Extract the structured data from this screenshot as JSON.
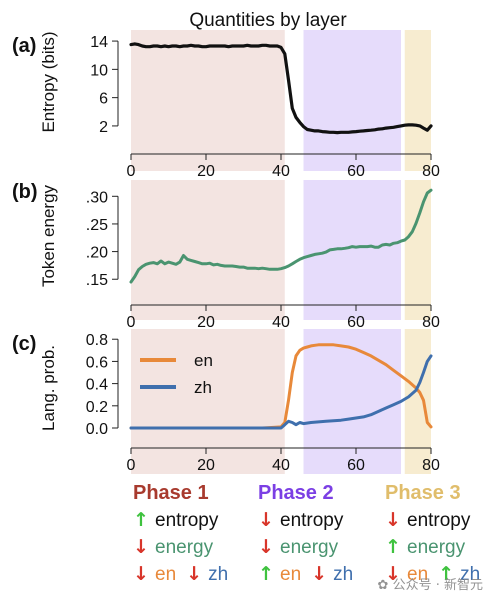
{
  "figure": {
    "title": "Quantities by layer"
  },
  "phases": [
    {
      "label": "Phase 1",
      "color": "#a83a2e",
      "bg": "#f3e4e1",
      "x_start": 0,
      "x_end": 41
    },
    {
      "label": "Phase 2",
      "color": "#7b3fe4",
      "bg": "#e6dcfb",
      "x_start": 46,
      "x_end": 72
    },
    {
      "label": "Phase 3",
      "color": "#e0bd6b",
      "bg": "#f7ecd0",
      "x_start": 73,
      "x_end": 80
    }
  ],
  "chart_data": [
    {
      "panel": "(a)",
      "type": "line",
      "ylabel": "Entropy (bits)",
      "xlim": [
        0,
        80
      ],
      "ylim": [
        1,
        15
      ],
      "yticks": [
        2,
        6,
        10,
        14
      ],
      "yticklabels": [
        "2",
        "6",
        "10",
        "14"
      ],
      "xticks": [
        0,
        20,
        40,
        60,
        80
      ],
      "xticklabels": [
        "0",
        "20",
        "40",
        "60",
        "80"
      ],
      "series": [
        {
          "color": "#111111",
          "x": [
            0,
            1,
            2,
            3,
            4,
            5,
            6,
            7,
            8,
            9,
            10,
            11,
            12,
            13,
            14,
            15,
            16,
            17,
            18,
            19,
            20,
            21,
            22,
            23,
            24,
            25,
            26,
            27,
            28,
            29,
            30,
            31,
            32,
            33,
            34,
            35,
            36,
            37,
            38,
            39,
            40,
            41,
            42,
            43,
            44,
            45,
            46,
            47,
            48,
            49,
            50,
            51,
            52,
            53,
            54,
            55,
            56,
            57,
            58,
            59,
            60,
            61,
            62,
            63,
            64,
            65,
            66,
            67,
            68,
            69,
            70,
            71,
            72,
            73,
            74,
            75,
            76,
            77,
            78,
            79,
            80
          ],
          "values": [
            13.5,
            13.6,
            13.5,
            13.3,
            13.2,
            13.2,
            13.3,
            13.3,
            13.2,
            13.3,
            13.2,
            13.3,
            13.3,
            13.2,
            13.3,
            13.3,
            13.4,
            13.3,
            13.3,
            13.2,
            13.2,
            13.3,
            13.3,
            13.3,
            13.3,
            13.3,
            13.2,
            13.3,
            13.3,
            13.3,
            13.3,
            13.4,
            13.3,
            13.3,
            13.3,
            13.4,
            13.4,
            13.3,
            13.3,
            13.3,
            13.1,
            12.2,
            8.5,
            4.5,
            3.2,
            2.5,
            1.9,
            1.5,
            1.4,
            1.3,
            1.3,
            1.2,
            1.15,
            1.1,
            1.1,
            1.05,
            1.1,
            1.1,
            1.1,
            1.15,
            1.2,
            1.25,
            1.3,
            1.35,
            1.4,
            1.45,
            1.55,
            1.6,
            1.7,
            1.75,
            1.8,
            1.9,
            2.0,
            2.1,
            2.15,
            2.15,
            2.1,
            2.0,
            1.7,
            1.4,
            2.0
          ]
        }
      ]
    },
    {
      "panel": "(b)",
      "type": "line",
      "ylabel": "Token energy",
      "xlim": [
        0,
        80
      ],
      "ylim": [
        0.145,
        0.315
      ],
      "yticks": [
        0.15,
        0.2,
        0.25,
        0.3
      ],
      "yticklabels": [
        ".15",
        ".20",
        ".25",
        ".30"
      ],
      "xticks": [
        0,
        20,
        40,
        60,
        80
      ],
      "xticklabels": [
        "0",
        "20",
        "40",
        "60",
        "80"
      ],
      "series": [
        {
          "color": "#4a9470",
          "x": [
            0,
            1,
            2,
            3,
            4,
            5,
            6,
            7,
            8,
            9,
            10,
            11,
            12,
            13,
            14,
            15,
            16,
            17,
            18,
            19,
            20,
            21,
            22,
            23,
            24,
            25,
            26,
            27,
            28,
            29,
            30,
            31,
            32,
            33,
            34,
            35,
            36,
            37,
            38,
            39,
            40,
            41,
            42,
            43,
            44,
            45,
            46,
            47,
            48,
            49,
            50,
            51,
            52,
            53,
            54,
            55,
            56,
            57,
            58,
            59,
            60,
            61,
            62,
            63,
            64,
            65,
            66,
            67,
            68,
            69,
            70,
            71,
            72,
            73,
            74,
            75,
            76,
            77,
            78,
            79,
            80
          ],
          "values": [
            0.145,
            0.155,
            0.167,
            0.173,
            0.177,
            0.179,
            0.18,
            0.178,
            0.183,
            0.178,
            0.181,
            0.179,
            0.177,
            0.181,
            0.193,
            0.186,
            0.184,
            0.182,
            0.18,
            0.178,
            0.178,
            0.179,
            0.176,
            0.177,
            0.175,
            0.174,
            0.174,
            0.174,
            0.173,
            0.172,
            0.172,
            0.17,
            0.17,
            0.17,
            0.169,
            0.17,
            0.169,
            0.168,
            0.168,
            0.168,
            0.169,
            0.171,
            0.174,
            0.178,
            0.182,
            0.186,
            0.189,
            0.191,
            0.193,
            0.195,
            0.196,
            0.197,
            0.199,
            0.203,
            0.204,
            0.205,
            0.205,
            0.206,
            0.207,
            0.209,
            0.208,
            0.209,
            0.209,
            0.209,
            0.21,
            0.208,
            0.208,
            0.212,
            0.213,
            0.212,
            0.215,
            0.216,
            0.219,
            0.221,
            0.227,
            0.236,
            0.251,
            0.27,
            0.29,
            0.306,
            0.311
          ]
        }
      ]
    },
    {
      "panel": "(c)",
      "type": "line",
      "ylabel": "Lang. prob.",
      "xlim": [
        0,
        80
      ],
      "ylim": [
        0,
        0.82
      ],
      "yticks": [
        0.0,
        0.2,
        0.4,
        0.6,
        0.8
      ],
      "yticklabels": [
        "0.0",
        "0.2",
        "0.4",
        "0.6",
        "0.8"
      ],
      "xticks": [
        0,
        20,
        40,
        60,
        80
      ],
      "xticklabels": [
        "0",
        "20",
        "40",
        "60",
        "80"
      ],
      "legend": [
        {
          "name": "en",
          "color": "#e8893a"
        },
        {
          "name": "zh",
          "color": "#3f6fad"
        }
      ],
      "series": [
        {
          "name": "en",
          "color": "#e8893a",
          "x": [
            0,
            5,
            10,
            15,
            20,
            25,
            30,
            35,
            38,
            40,
            41,
            42,
            43,
            44,
            45,
            46,
            47,
            48,
            49,
            50,
            52,
            54,
            56,
            58,
            60,
            62,
            64,
            66,
            68,
            70,
            72,
            74,
            76,
            77,
            78,
            79,
            80
          ],
          "values": [
            0.0,
            0.0,
            0.0,
            0.0,
            0.0,
            0.0,
            0.0,
            0.0,
            0.005,
            0.01,
            0.05,
            0.25,
            0.5,
            0.65,
            0.7,
            0.72,
            0.73,
            0.74,
            0.745,
            0.75,
            0.75,
            0.75,
            0.74,
            0.73,
            0.71,
            0.68,
            0.65,
            0.61,
            0.57,
            0.52,
            0.47,
            0.42,
            0.36,
            0.32,
            0.25,
            0.05,
            0.01
          ]
        },
        {
          "name": "zh",
          "color": "#3f6fad",
          "x": [
            0,
            5,
            10,
            15,
            20,
            25,
            30,
            35,
            40,
            41,
            42,
            43,
            44,
            45,
            46,
            48,
            50,
            52,
            54,
            56,
            58,
            60,
            62,
            64,
            66,
            68,
            70,
            72,
            74,
            76,
            77,
            78,
            79,
            80
          ],
          "values": [
            0.0,
            0.0,
            0.0,
            0.0,
            0.0,
            0.0,
            0.0,
            0.0,
            0.0,
            0.03,
            0.06,
            0.05,
            0.03,
            0.05,
            0.04,
            0.05,
            0.055,
            0.06,
            0.065,
            0.07,
            0.08,
            0.09,
            0.1,
            0.12,
            0.15,
            0.18,
            0.21,
            0.24,
            0.28,
            0.34,
            0.41,
            0.5,
            0.6,
            0.65
          ]
        }
      ]
    }
  ],
  "legend_columns": [
    {
      "title": "Phase 1",
      "rows": [
        {
          "arrow": "↑",
          "arrow_color": "#3ec23e",
          "parts": [
            {
              "text": "entropy",
              "color": "#111111"
            }
          ]
        },
        {
          "arrow": "↓",
          "arrow_color": "#d8352a",
          "parts": [
            {
              "text": "energy",
              "color": "#4a9470"
            }
          ]
        },
        {
          "arrow": "↓",
          "arrow_color": "#d8352a",
          "parts": [
            {
              "text": "en",
              "color": "#e8893a"
            }
          ],
          "arrow2": "↓",
          "arrow2_color": "#d8352a",
          "parts2": [
            {
              "text": "zh",
              "color": "#3f6fad"
            }
          ]
        }
      ]
    },
    {
      "title": "Phase 2",
      "rows": [
        {
          "arrow": "↓",
          "arrow_color": "#d8352a",
          "parts": [
            {
              "text": "entropy",
              "color": "#111111"
            }
          ]
        },
        {
          "arrow": "↓",
          "arrow_color": "#d8352a",
          "parts": [
            {
              "text": "energy",
              "color": "#4a9470"
            }
          ]
        },
        {
          "arrow": "↑",
          "arrow_color": "#3ec23e",
          "parts": [
            {
              "text": "en",
              "color": "#e8893a"
            }
          ],
          "arrow2": "↓",
          "arrow2_color": "#d8352a",
          "parts2": [
            {
              "text": "zh",
              "color": "#3f6fad"
            }
          ]
        }
      ]
    },
    {
      "title": "Phase 3",
      "rows": [
        {
          "arrow": "↓",
          "arrow_color": "#d8352a",
          "parts": [
            {
              "text": "entropy",
              "color": "#111111"
            }
          ]
        },
        {
          "arrow": "↑",
          "arrow_color": "#3ec23e",
          "parts": [
            {
              "text": "energy",
              "color": "#4a9470"
            }
          ]
        },
        {
          "arrow": "↓",
          "arrow_color": "#d8352a",
          "parts": [
            {
              "text": "en",
              "color": "#e8893a"
            }
          ],
          "arrow2": "↑",
          "arrow2_color": "#3ec23e",
          "parts2": [
            {
              "text": "zh",
              "color": "#3f6fad"
            }
          ]
        }
      ]
    }
  ],
  "watermark": {
    "text": "公众号 · 新智元"
  }
}
